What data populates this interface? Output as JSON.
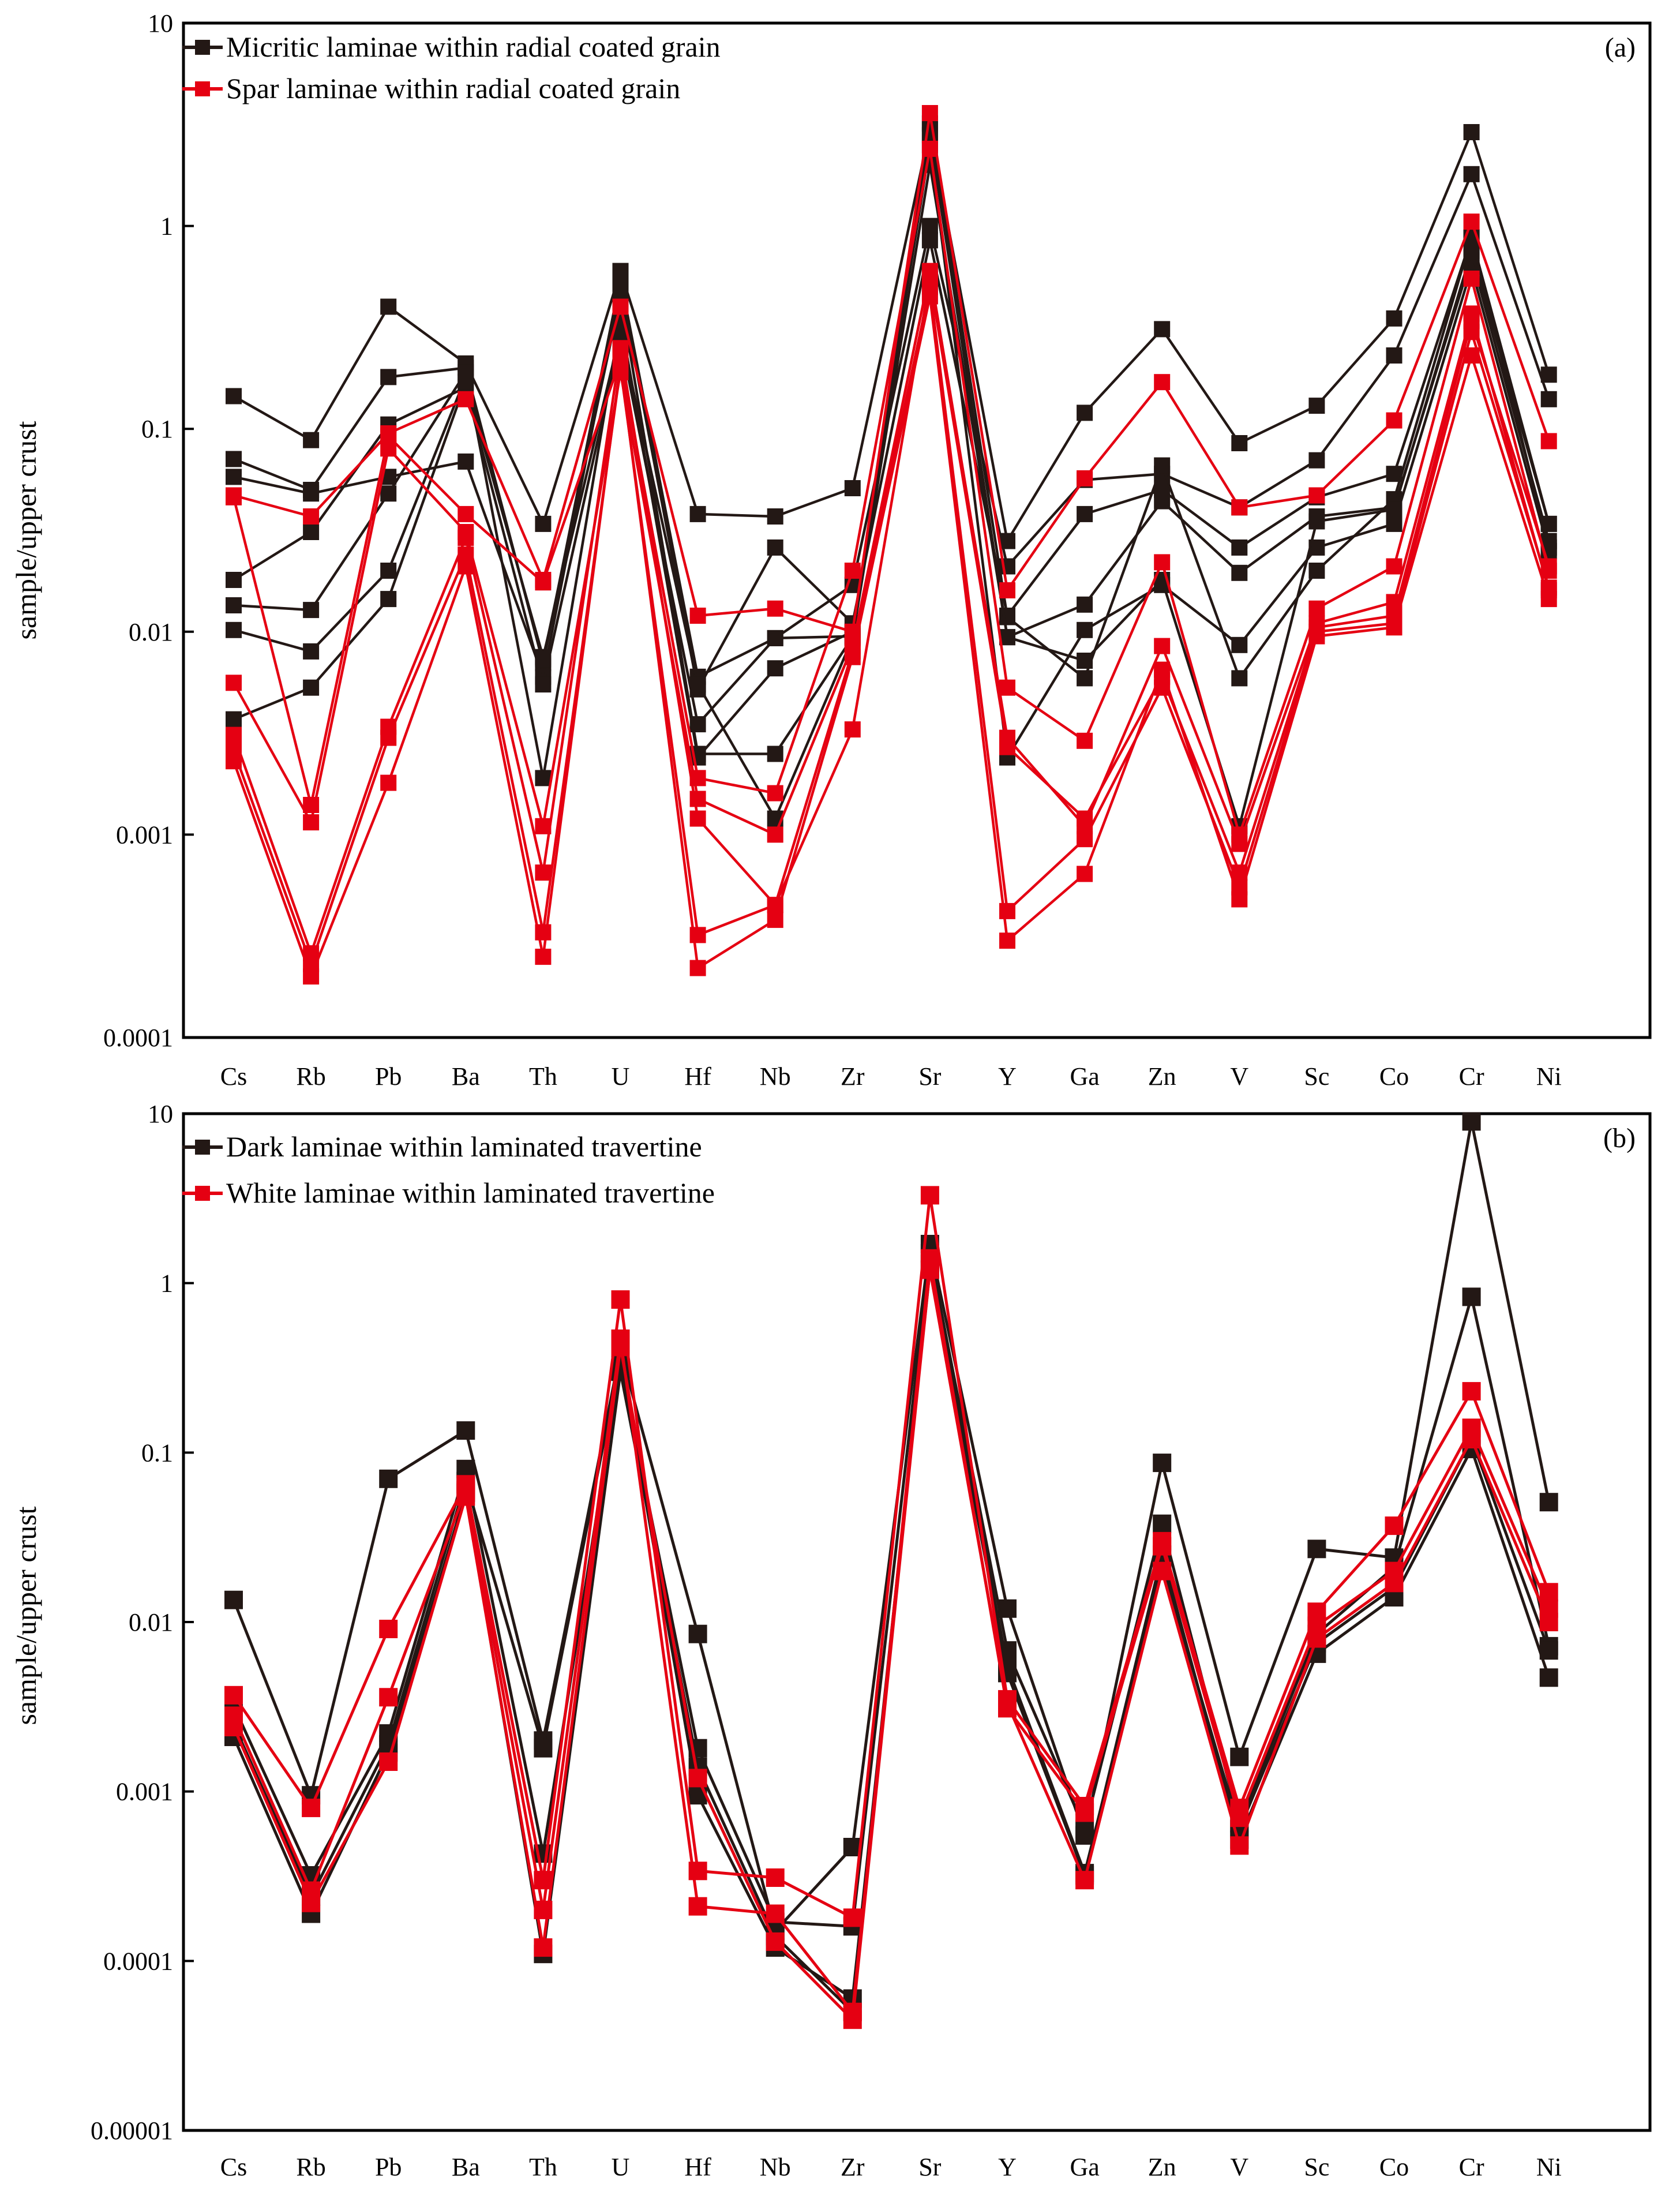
{
  "chart_data": [
    {
      "type": "line",
      "panel_label": "(a)",
      "ylabel": "sample/upper crust",
      "yscale": "log",
      "ylim": [
        0.0001,
        10
      ],
      "yticks": [
        0.0001,
        0.001,
        0.01,
        0.1,
        1,
        10
      ],
      "ytick_labels": [
        "0.0001",
        "0.001",
        "0.01",
        "0.1",
        "1",
        "10"
      ],
      "categories": [
        "Cs",
        "Rb",
        "Pb",
        "Ba",
        "Th",
        "U",
        "Hf",
        "Nb",
        "Zr",
        "Sr",
        "Y",
        "Ga",
        "Zn",
        "V",
        "Sc",
        "Co",
        "Cr",
        "Ni"
      ],
      "legend": [
        {
          "label": "Micritic laminae within  radial coated grain",
          "color": "#231815"
        },
        {
          "label": "Spar laminae within radial coated grain",
          "color": "#e50012"
        }
      ],
      "series": [
        {
          "name": "Micritic 1",
          "color": "#231815",
          "values": [
            0.145,
            0.088,
            0.4,
            0.21,
            0.034,
            0.6,
            0.038,
            0.037,
            0.051,
            3.0,
            0.028,
            0.12,
            0.31,
            0.085,
            0.13,
            0.35,
            2.9,
            0.185
          ]
        },
        {
          "name": "Micritic 2",
          "color": "#231815",
          "values": [
            0.071,
            0.05,
            0.18,
            0.2,
            0.007,
            0.55,
            0.006,
            0.0093,
            0.017,
            1.0,
            0.021,
            0.056,
            0.06,
            0.041,
            0.07,
            0.23,
            1.8,
            0.14
          ]
        },
        {
          "name": "Micritic 3",
          "color": "#231815",
          "values": [
            0.058,
            0.048,
            0.058,
            0.069,
            0.006,
            0.5,
            0.0052,
            0.026,
            0.011,
            0.85,
            0.012,
            0.038,
            0.05,
            0.026,
            0.046,
            0.06,
            0.88,
            0.034
          ]
        },
        {
          "name": "Micritic 4",
          "color": "#231815",
          "values": [
            0.018,
            0.031,
            0.105,
            0.16,
            0.0055,
            0.28,
            0.0035,
            0.0093,
            0.0095,
            2.8,
            0.0094,
            0.0136,
            0.044,
            0.0195,
            0.037,
            0.041,
            0.7,
            0.028
          ]
        },
        {
          "name": "Micritic 5",
          "color": "#231815",
          "values": [
            0.0135,
            0.0128,
            0.048,
            0.19,
            0.0019,
            0.35,
            0.0024,
            0.0066,
            0.01,
            2.5,
            0.0024,
            0.0102,
            0.017,
            0.0086,
            0.026,
            0.034,
            0.62,
            0.025
          ]
        },
        {
          "name": "Micritic 6",
          "color": "#231815",
          "values": [
            0.0102,
            0.008,
            0.02,
            0.18,
            0.0073,
            0.45,
            0.0025,
            0.0025,
            0.0094,
            3.2,
            0.0118,
            0.0059,
            0.066,
            0.0059,
            0.02,
            0.045,
            0.88,
            0.026
          ]
        },
        {
          "name": "Micritic 7",
          "color": "#231815",
          "values": [
            0.0037,
            0.0053,
            0.0145,
            0.17,
            0.0075,
            0.3,
            0.0055,
            0.0012,
            0.0093,
            2.0,
            0.0094,
            0.0072,
            0.018,
            0.0011,
            0.035,
            0.04,
            0.75,
            0.034
          ]
        },
        {
          "name": "Spar 1",
          "color": "#e50012",
          "values": [
            0.047,
            0.037,
            0.095,
            0.14,
            0.018,
            0.4,
            0.012,
            0.013,
            0.01,
            3.6,
            0.016,
            0.057,
            0.17,
            0.041,
            0.047,
            0.11,
            1.05,
            0.087
          ]
        },
        {
          "name": "Spar 2",
          "color": "#e50012",
          "values": [
            0.046,
            0.0014,
            0.092,
            0.038,
            0.0175,
            0.22,
            0.0019,
            0.0016,
            0.02,
            2.4,
            0.0053,
            0.0029,
            0.022,
            0.001,
            0.013,
            0.021,
            0.55,
            0.02
          ]
        },
        {
          "name": "Spar 3",
          "color": "#e50012",
          "values": [
            0.0056,
            0.00115,
            0.08,
            0.031,
            0.0011,
            0.19,
            0.0015,
            0.001,
            0.0085,
            0.6,
            0.003,
            0.0011,
            0.0085,
            0.0009,
            0.011,
            0.014,
            0.37,
            0.016
          ]
        },
        {
          "name": "Spar 4",
          "color": "#e50012",
          "values": [
            0.0031,
            0.00026,
            0.0034,
            0.029,
            0.00065,
            0.25,
            0.0012,
            0.00045,
            0.0033,
            0.55,
            0.0027,
            0.0012,
            0.006,
            0.00065,
            0.0105,
            0.012,
            0.34,
            0.021
          ]
        },
        {
          "name": "Spar 5",
          "color": "#e50012",
          "values": [
            0.0026,
            0.00023,
            0.003,
            0.024,
            0.00033,
            0.2,
            0.00032,
            0.00045,
            0.008,
            0.5,
            0.00042,
            0.00095,
            0.0053,
            0.00055,
            0.01,
            0.011,
            0.3,
            0.0165
          ]
        },
        {
          "name": "Spar 6",
          "color": "#e50012",
          "values": [
            0.0023,
            0.0002,
            0.0018,
            0.021,
            0.00025,
            0.21,
            0.00022,
            0.00038,
            0.0075,
            0.45,
            0.0003,
            0.00064,
            0.0065,
            0.00048,
            0.0095,
            0.0105,
            0.23,
            0.0145
          ]
        }
      ]
    },
    {
      "type": "line",
      "panel_label": "(b)",
      "ylabel": "sample/upper crust",
      "yscale": "log",
      "ylim": [
        1e-05,
        10
      ],
      "yticks": [
        1e-05,
        0.0001,
        0.001,
        0.01,
        0.1,
        1,
        10
      ],
      "ytick_labels": [
        "0.00001",
        "0.0001",
        "0.001",
        "0.01",
        "0.1",
        "1",
        "10"
      ],
      "categories": [
        "Cs",
        "Rb",
        "Pb",
        "Ba",
        "Th",
        "U",
        "Hf",
        "Nb",
        "Zr",
        "Sr",
        "Y",
        "Ga",
        "Zn",
        "V",
        "Sc",
        "Co",
        "Cr",
        "Ni"
      ],
      "legend": [
        {
          "label": "Dark laminae within laminated travertine",
          "color": "#231815"
        },
        {
          "label": "White laminae within laminated travertine",
          "color": "#e50012"
        }
      ],
      "series": [
        {
          "name": "Dark 1",
          "color": "#231815",
          "values": [
            0.0135,
            0.00095,
            0.07,
            0.135,
            0.002,
            0.4,
            0.0085,
            0.00015,
            0.00047,
            1.7,
            0.012,
            0.00055,
            0.087,
            0.0016,
            0.027,
            0.024,
            9.0,
            0.051
          ]
        },
        {
          "name": "Dark 2",
          "color": "#231815",
          "values": [
            0.0032,
            0.00032,
            0.0022,
            0.08,
            0.00043,
            0.33,
            0.0018,
            0.00017,
            0.00016,
            1.5,
            0.0068,
            0.0006,
            0.038,
            0.00065,
            0.0085,
            0.021,
            0.83,
            0.0072
          ]
        },
        {
          "name": "Dark 3",
          "color": "#231815",
          "values": [
            0.0025,
            0.00024,
            0.0019,
            0.068,
            0.0018,
            0.36,
            0.00095,
            0.00012,
            6e-05,
            1.2,
            0.005,
            0.00032,
            0.025,
            0.00052,
            0.0065,
            0.014,
            0.105,
            0.0047
          ]
        },
        {
          "name": "Dark 4",
          "color": "#231815",
          "values": [
            0.0021,
            0.00019,
            0.0017,
            0.058,
            0.00011,
            0.3,
            0.0014,
            0.00014,
            5e-05,
            1.3,
            0.0055,
            0.00033,
            0.022,
            0.0006,
            0.0075,
            0.016,
            0.12,
            0.0068
          ]
        },
        {
          "name": "White 1",
          "color": "#e50012",
          "values": [
            0.0037,
            0.0008,
            0.0091,
            0.065,
            0.0003,
            0.8,
            0.00034,
            0.00031,
            0.00018,
            3.3,
            0.0035,
            0.00082,
            0.03,
            0.0008,
            0.0115,
            0.037,
            0.23,
            0.015
          ]
        },
        {
          "name": "White 2",
          "color": "#e50012",
          "values": [
            0.0028,
            0.00026,
            0.0036,
            0.06,
            0.0002,
            0.47,
            0.00021,
            0.00019,
            5e-05,
            1.4,
            0.0031,
            0.00075,
            0.028,
            0.0007,
            0.0095,
            0.02,
            0.14,
            0.012
          ]
        },
        {
          "name": "White 3",
          "color": "#e50012",
          "values": [
            0.0024,
            0.00022,
            0.0015,
            0.055,
            0.00012,
            0.42,
            0.0012,
            0.00013,
            4.5e-05,
            1.2,
            0.0033,
            0.0003,
            0.02,
            0.00048,
            0.008,
            0.017,
            0.12,
            0.01
          ]
        }
      ]
    }
  ]
}
